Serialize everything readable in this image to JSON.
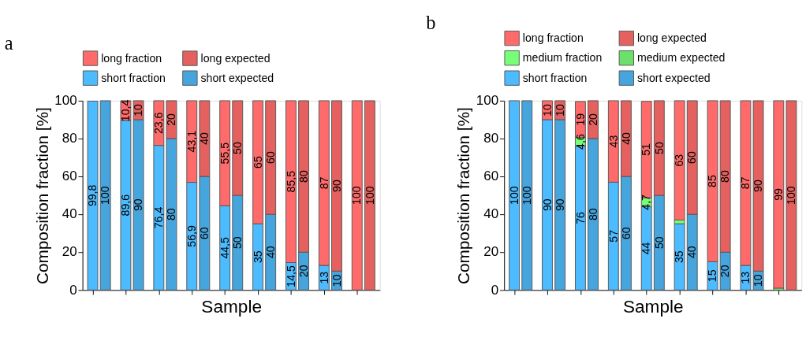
{
  "chart_data": [
    {
      "type": "bar",
      "title": "a",
      "xlabel": "Sample",
      "ylabel": "Composition fraction [%]",
      "stacked": true,
      "legend": "top",
      "grid": false,
      "tick_labels": "y",
      "categories": [
        null,
        null,
        null,
        null,
        null,
        null,
        null,
        null,
        null,
        null,
        null,
        null,
        null,
        null,
        null,
        null,
        null,
        null
      ],
      "ylim": [
        0,
        100
      ],
      "yticks": [
        0,
        20,
        40,
        60,
        80,
        100
      ],
      "series": [
        {
          "name": "short fraction",
          "color": "#4dbbff",
          "values": [
            99.8,
            null,
            89.6,
            null,
            76.4,
            null,
            56.9,
            null,
            44.5,
            null,
            35,
            null,
            14.5,
            null,
            13,
            null,
            null,
            null
          ],
          "value_labels": [
            "99,8",
            null,
            "89,6",
            null,
            "76,4",
            null,
            "56,9",
            null,
            "44,5",
            null,
            "35",
            null,
            "14,5",
            null,
            "13",
            null,
            null,
            null
          ]
        },
        {
          "name": "short expected",
          "color": "#47a5dd",
          "values": [
            null,
            100,
            null,
            90,
            null,
            80,
            null,
            60,
            null,
            50,
            null,
            40,
            null,
            20,
            null,
            10,
            null,
            null
          ],
          "value_labels": [
            null,
            "100",
            null,
            "90",
            null,
            "80",
            null,
            "60",
            null,
            "50",
            null,
            "40",
            null,
            "20",
            null,
            "10",
            null,
            null
          ]
        },
        {
          "name": "long fraction",
          "color": "#ff6b6b",
          "values": [
            null,
            null,
            10.4,
            null,
            23.6,
            null,
            43.1,
            null,
            55.5,
            null,
            65,
            null,
            85.5,
            null,
            87,
            null,
            100,
            null
          ],
          "value_labels": [
            null,
            null,
            "10,4",
            null,
            "23,6",
            null,
            "43,1",
            null,
            "55,5",
            null,
            "65",
            null,
            "85,5",
            null,
            "87",
            null,
            "100",
            null
          ]
        },
        {
          "name": "long expected",
          "color": "#e4615f",
          "values": [
            null,
            null,
            null,
            10,
            null,
            20,
            null,
            40,
            null,
            50,
            null,
            60,
            null,
            80,
            null,
            90,
            null,
            100
          ],
          "value_labels": [
            null,
            null,
            null,
            "10",
            null,
            "20",
            null,
            "40",
            null,
            "50",
            null,
            "60",
            null,
            "80",
            null,
            "90",
            null,
            "100"
          ]
        }
      ]
    },
    {
      "type": "bar",
      "title": "b",
      "xlabel": "Sample",
      "ylabel": "Composition fraction [%]",
      "stacked": true,
      "legend": "top",
      "grid": false,
      "tick_labels": "y",
      "categories": [
        null,
        null,
        null,
        null,
        null,
        null,
        null,
        null,
        null,
        null,
        null,
        null,
        null,
        null,
        null,
        null,
        null,
        null
      ],
      "ylim": [
        0,
        100
      ],
      "yticks": [
        0,
        20,
        40,
        60,
        80,
        100
      ],
      "series": [
        {
          "name": "short fraction",
          "color": "#4dbbff",
          "values": [
            100,
            null,
            90,
            null,
            76,
            null,
            57,
            null,
            44,
            null,
            35,
            null,
            15,
            null,
            13,
            null,
            null,
            null
          ],
          "value_labels": [
            "100",
            null,
            "90",
            null,
            "76",
            null,
            "57",
            null,
            "44",
            null,
            "35",
            null,
            "15",
            null,
            "13",
            null,
            null,
            null
          ]
        },
        {
          "name": "short expected",
          "color": "#47a5dd",
          "values": [
            null,
            100,
            null,
            90,
            null,
            80,
            null,
            60,
            null,
            50,
            null,
            40,
            null,
            20,
            null,
            10,
            null,
            null
          ],
          "value_labels": [
            null,
            "100",
            null,
            "90",
            null,
            "80",
            null,
            "60",
            null,
            "50",
            null,
            "40",
            null,
            "20",
            null,
            "10",
            null,
            null
          ]
        },
        {
          "name": "medium fraction",
          "color": "#77ff77",
          "values": [
            null,
            null,
            null,
            null,
            4.6,
            null,
            null,
            null,
            4.7,
            null,
            2,
            null,
            null,
            null,
            null,
            null,
            1,
            null
          ],
          "value_labels": [
            null,
            null,
            null,
            null,
            "4,6",
            null,
            null,
            null,
            "4,7",
            null,
            null,
            null,
            null,
            null,
            null,
            null,
            null,
            null
          ]
        },
        {
          "name": "medium expected",
          "color": "#6be06b",
          "values": [
            null,
            null,
            null,
            null,
            null,
            null,
            null,
            null,
            null,
            null,
            null,
            null,
            null,
            null,
            null,
            null,
            null,
            null
          ]
        },
        {
          "name": "long fraction",
          "color": "#ff6b6b",
          "values": [
            null,
            null,
            10,
            null,
            19,
            null,
            43,
            null,
            51,
            null,
            63,
            null,
            85,
            null,
            87,
            null,
            99,
            null
          ],
          "value_labels": [
            null,
            null,
            "10",
            null,
            "19",
            null,
            "43",
            null,
            "51",
            null,
            "63",
            null,
            "85",
            null,
            "87",
            null,
            "99",
            null
          ]
        },
        {
          "name": "long expected",
          "color": "#e4615f",
          "values": [
            null,
            null,
            null,
            10,
            null,
            20,
            null,
            40,
            null,
            50,
            null,
            60,
            null,
            80,
            null,
            90,
            null,
            100
          ],
          "value_labels": [
            null,
            null,
            null,
            "10",
            null,
            "20",
            null,
            "40",
            null,
            "50",
            null,
            "60",
            null,
            "80",
            null,
            "90",
            null,
            "100"
          ]
        }
      ]
    }
  ]
}
